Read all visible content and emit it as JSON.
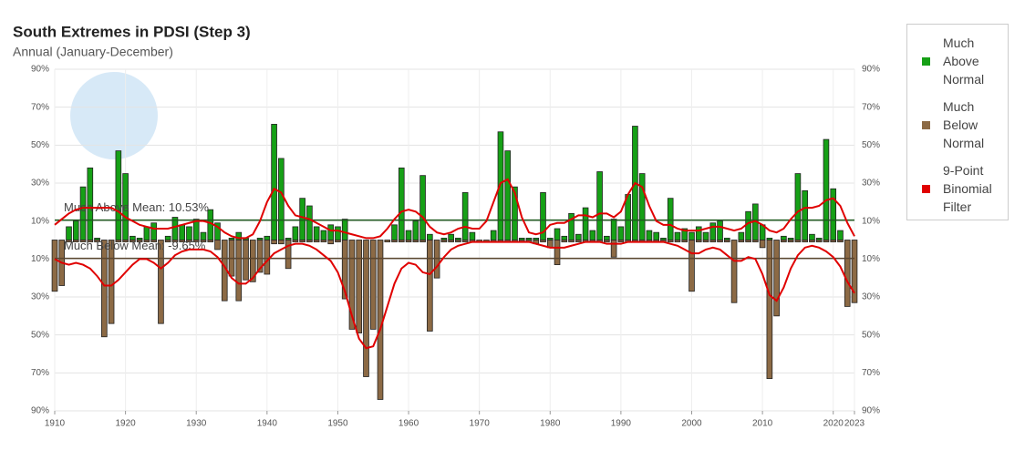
{
  "chart_data": {
    "type": "bar",
    "title": "South Extremes in PDSI (Step 3)",
    "subtitle": "Annual (January-December)",
    "x": [
      1910,
      1911,
      1912,
      1913,
      1914,
      1915,
      1916,
      1917,
      1918,
      1919,
      1920,
      1921,
      1922,
      1923,
      1924,
      1925,
      1926,
      1927,
      1928,
      1929,
      1930,
      1931,
      1932,
      1933,
      1934,
      1935,
      1936,
      1937,
      1938,
      1939,
      1940,
      1941,
      1942,
      1943,
      1944,
      1945,
      1946,
      1947,
      1948,
      1949,
      1950,
      1951,
      1952,
      1953,
      1954,
      1955,
      1956,
      1957,
      1958,
      1959,
      1960,
      1961,
      1962,
      1963,
      1964,
      1965,
      1966,
      1967,
      1968,
      1969,
      1970,
      1971,
      1972,
      1973,
      1974,
      1975,
      1976,
      1977,
      1978,
      1979,
      1980,
      1981,
      1982,
      1983,
      1984,
      1985,
      1986,
      1987,
      1988,
      1989,
      1990,
      1991,
      1992,
      1993,
      1994,
      1995,
      1996,
      1997,
      1998,
      1999,
      2000,
      2001,
      2002,
      2003,
      2004,
      2005,
      2006,
      2007,
      2008,
      2009,
      2010,
      2011,
      2012,
      2013,
      2014,
      2015,
      2016,
      2017,
      2018,
      2019,
      2020,
      2021,
      2022,
      2023
    ],
    "xlim": [
      1910,
      2023
    ],
    "xticks": [
      1910,
      1920,
      1930,
      1940,
      1950,
      1960,
      1970,
      1980,
      1990,
      2000,
      2010,
      2020,
      2023
    ],
    "ylim": [
      -90,
      90
    ],
    "yticks": [
      {
        "value": 90,
        "label": "90%"
      },
      {
        "value": 70,
        "label": "70%"
      },
      {
        "value": 50,
        "label": "50%"
      },
      {
        "value": 30,
        "label": "30%"
      },
      {
        "value": 10,
        "label": "10%"
      },
      {
        "value": -10,
        "label": "10%"
      },
      {
        "value": -30,
        "label": "30%"
      },
      {
        "value": -50,
        "label": "50%"
      },
      {
        "value": -70,
        "label": "70%"
      },
      {
        "value": -90,
        "label": "90%"
      }
    ],
    "grid": true,
    "legend": "right",
    "series": [
      {
        "name": "Much Above Normal",
        "color": "#16a016",
        "values": [
          0,
          0,
          7,
          10,
          28,
          38,
          1,
          0,
          0,
          47,
          35,
          2,
          1,
          7,
          9,
          0,
          2,
          12,
          8,
          7,
          11,
          4,
          16,
          9,
          0,
          1,
          4,
          1,
          0,
          1,
          2,
          61,
          43,
          1,
          7,
          22,
          18,
          7,
          5,
          8,
          7,
          11,
          0,
          0,
          0,
          0,
          0,
          0,
          8,
          38,
          5,
          10,
          34,
          3,
          0,
          1,
          3,
          1,
          25,
          4,
          0,
          0,
          5,
          57,
          47,
          28,
          1,
          1,
          1,
          25,
          1,
          6,
          2,
          14,
          3,
          17,
          5,
          36,
          2,
          11,
          7,
          24,
          60,
          35,
          5,
          4,
          1,
          22,
          4,
          6,
          4,
          7,
          4,
          9,
          10,
          1,
          0,
          4,
          15,
          19,
          8,
          1,
          0,
          2,
          1,
          35,
          26,
          3,
          1,
          53,
          27,
          5,
          0,
          0
        ]
      },
      {
        "name": "Much Below Normal",
        "color": "#8c6a45",
        "values": [
          -27,
          -24,
          -1,
          -1,
          -1,
          -1,
          -1,
          -51,
          -44,
          -1,
          -1,
          -1,
          -1,
          -1,
          -1,
          -44,
          -1,
          -1,
          -1,
          -1,
          -1,
          -1,
          -1,
          -5,
          -32,
          -19,
          -32,
          -21,
          -22,
          -17,
          -18,
          -2,
          -2,
          -15,
          -1,
          -1,
          -1,
          -1,
          -1,
          -2,
          -1,
          -31,
          -47,
          -49,
          -72,
          -47,
          -84,
          -1,
          -1,
          -1,
          -1,
          -1,
          -1,
          -48,
          -20,
          -1,
          -1,
          -1,
          -1,
          -1,
          -1,
          -1,
          -1,
          -1,
          -1,
          -1,
          -1,
          -1,
          -2,
          -1,
          -4,
          -13,
          -1,
          -1,
          -1,
          -1,
          -1,
          -1,
          -1,
          -9,
          -1,
          -1,
          -1,
          -1,
          -1,
          -1,
          -1,
          -1,
          -1,
          -1,
          -27,
          -1,
          -1,
          -1,
          -1,
          -1,
          -33,
          -1,
          -1,
          -1,
          -4,
          -73,
          -40,
          -1,
          -1,
          -1,
          -1,
          -1,
          -1,
          -1,
          -1,
          -1,
          -35,
          -33
        ]
      },
      {
        "name": "9-Point Binomial Filter",
        "color": "#e00000",
        "values": [
          8,
          11,
          14,
          16,
          17,
          17,
          17,
          17,
          17,
          15,
          12,
          10,
          8,
          7,
          6,
          6,
          6,
          7,
          8,
          9,
          10,
          10,
          9,
          7,
          4,
          2,
          1,
          1,
          3,
          10,
          20,
          27,
          25,
          18,
          13,
          12,
          11,
          9,
          7,
          5,
          5,
          4,
          3,
          2,
          1,
          1,
          2,
          6,
          11,
          15,
          16,
          15,
          12,
          7,
          4,
          3,
          4,
          6,
          7,
          6,
          6,
          10,
          20,
          30,
          32,
          25,
          12,
          4,
          3,
          4,
          8,
          9,
          9,
          11,
          13,
          13,
          12,
          14,
          14,
          12,
          15,
          24,
          30,
          28,
          18,
          10,
          8,
          8,
          6,
          5,
          5,
          5,
          6,
          7,
          7,
          6,
          5,
          6,
          9,
          10,
          8,
          5,
          4,
          6,
          11,
          15,
          17,
          17,
          18,
          21,
          22,
          18,
          9,
          2
        ],
        "values_below": [
          -10,
          -12,
          -13,
          -12,
          -13,
          -15,
          -19,
          -24,
          -24,
          -21,
          -17,
          -13,
          -10,
          -10,
          -12,
          -15,
          -12,
          -8,
          -6,
          -5,
          -5,
          -5,
          -6,
          -9,
          -14,
          -20,
          -23,
          -23,
          -20,
          -15,
          -11,
          -7,
          -5,
          -3,
          -2,
          -2,
          -3,
          -5,
          -8,
          -11,
          -17,
          -27,
          -40,
          -52,
          -57,
          -56,
          -47,
          -35,
          -23,
          -15,
          -12,
          -13,
          -17,
          -18,
          -14,
          -9,
          -5,
          -3,
          -2,
          -1,
          -1,
          -1,
          -1,
          -1,
          -1,
          -1,
          -1,
          -1,
          -2,
          -3,
          -4,
          -4,
          -4,
          -3,
          -2,
          -1,
          -1,
          -1,
          -2,
          -2,
          -2,
          -1,
          -1,
          -1,
          -1,
          -1,
          -1,
          -2,
          -3,
          -5,
          -7,
          -7,
          -5,
          -4,
          -5,
          -8,
          -11,
          -11,
          -9,
          -10,
          -18,
          -29,
          -32,
          -25,
          -15,
          -8,
          -4,
          -3,
          -4,
          -6,
          -9,
          -14,
          -22,
          -28
        ]
      }
    ],
    "annotations": [
      {
        "label": "Much Above Mean: 10.53%",
        "value": 10.53,
        "color": "#1e5a1e"
      },
      {
        "label": "Much Below Mean: -9.65%",
        "value": -9.65,
        "color": "#5a4630"
      }
    ]
  }
}
